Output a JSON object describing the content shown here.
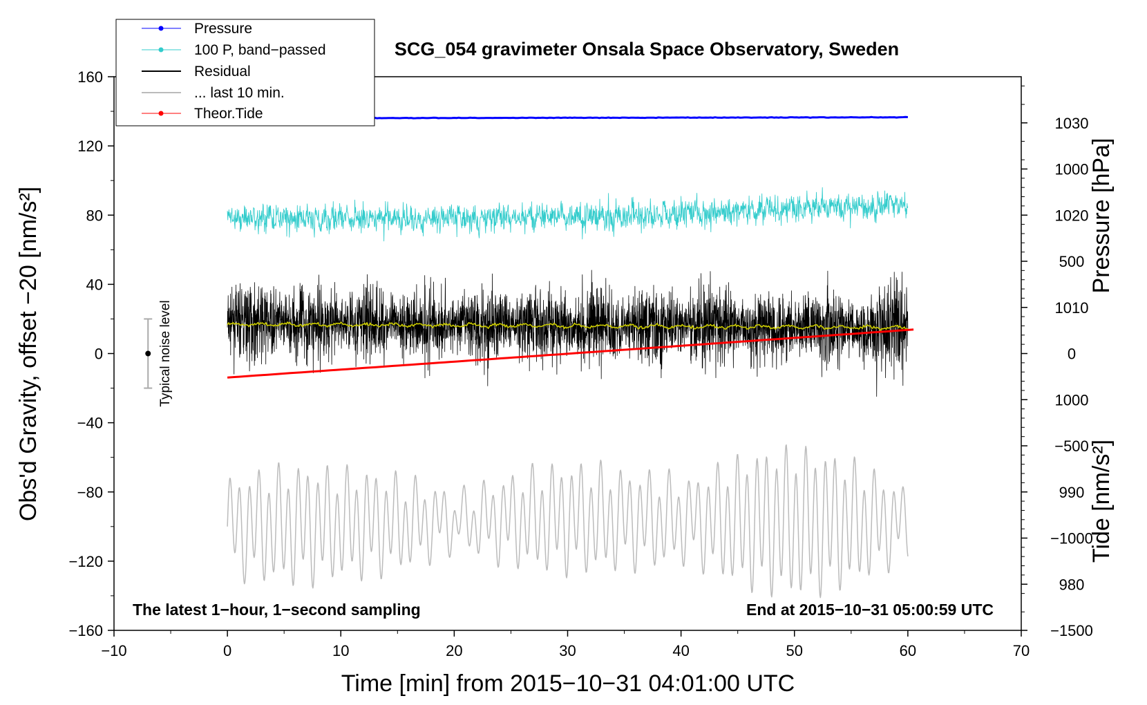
{
  "chart_data": {
    "type": "line",
    "title": "SCG_054 gravimeter Onsala Space Observatory, Sweden",
    "xlabel": "Time [min] from 2015−10−31 04:01:00 UTC",
    "ylabel_left": "Obs'd Gravity, offset −20 [nm/s²]",
    "ylabel_pressure": "Pressure [hPa]",
    "ylabel_tide": "Tide [nm/s²]",
    "xlim": [
      -10,
      70
    ],
    "ylim": [
      -160,
      160
    ],
    "pressure_lim": [
      975,
      1035
    ],
    "tide_lim": [
      -1500,
      1500
    ],
    "x_ticks": [
      -10,
      0,
      10,
      20,
      30,
      40,
      50,
      60,
      70
    ],
    "x_tick_labels": [
      "−10",
      "0",
      "10",
      "20",
      "30",
      "40",
      "50",
      "60",
      "70"
    ],
    "y_ticks": [
      -160,
      -120,
      -80,
      -40,
      0,
      40,
      80,
      120,
      160
    ],
    "y_tick_labels": [
      "−160",
      "−120",
      "−80",
      "−40",
      "0",
      "40",
      "80",
      "120",
      "160"
    ],
    "pressure_ticks": [
      980,
      990,
      1000,
      1010,
      1020,
      1030
    ],
    "pressure_tick_labels": [
      "980",
      "990",
      "1000",
      "1010",
      "1020",
      "1030"
    ],
    "tide_ticks": [
      -1500,
      -1000,
      -500,
      0,
      500,
      1000
    ],
    "tide_tick_labels": [
      "−1500",
      "−1000",
      "−500",
      "0",
      "500",
      "1000"
    ],
    "legend": [
      {
        "label": "Pressure",
        "color": "#0000ff",
        "marker": true
      },
      {
        "label": "100 P, band−passed",
        "color": "#33cccc",
        "marker": true
      },
      {
        "label": "Residual",
        "color": "#000000",
        "marker": false
      },
      {
        "label": "... last 10 min.",
        "color": "#bbbbbb",
        "marker": false
      },
      {
        "label": "Theor.Tide",
        "color": "#ff0000",
        "marker": true
      }
    ],
    "series": [
      {
        "name": "Pressure",
        "axis": "pressure",
        "color": "#0000ff",
        "x": [
          0,
          60
        ],
        "values": [
          1030.5,
          1030.6
        ]
      },
      {
        "name": "100 P, band-passed",
        "axis": "gravity",
        "color": "#33cccc",
        "x": [
          0,
          10,
          20,
          30,
          40,
          50,
          60
        ],
        "values": [
          79,
          78,
          78,
          79,
          81,
          84,
          86
        ],
        "amplitude": 6
      },
      {
        "name": "Residual",
        "axis": "gravity",
        "color": "#000000",
        "x": [
          0,
          60
        ],
        "values": [
          18,
          15
        ],
        "amplitude": 30
      },
      {
        "name": "Residual smoothed",
        "axis": "gravity",
        "color": "#cccc00",
        "x": [
          0,
          60
        ],
        "values": [
          17,
          15
        ]
      },
      {
        "name": "... last 10 min.",
        "axis": "gravity",
        "color": "#bbbbbb",
        "x": [
          0,
          15,
          30,
          45,
          60
        ],
        "values": [
          -100,
          -98,
          -95,
          -97,
          -98
        ],
        "amplitude": 25
      },
      {
        "name": "Theor.Tide",
        "axis": "tide",
        "color": "#ff0000",
        "x": [
          0,
          60.5
        ],
        "values": [
          -130,
          130
        ]
      }
    ],
    "noise_bar": {
      "x": -7,
      "center": 0,
      "low": -20,
      "high": 20,
      "label": "Typical noise level"
    },
    "annotations": {
      "left": "The latest 1−hour, 1−second sampling",
      "right": "End at 2015−10−31 05:00:59 UTC"
    }
  }
}
